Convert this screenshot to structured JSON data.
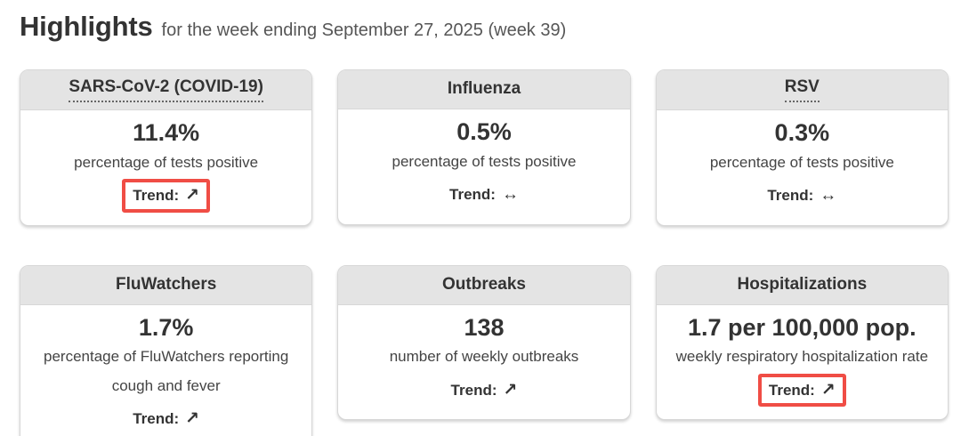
{
  "header": {
    "title": "Highlights",
    "subtitle": "for the week ending September 27, 2025 (week 39)"
  },
  "trend_label": "Trend:",
  "colors": {
    "highlight": "#f04d45",
    "card_header_bg": "#e4e4e4",
    "card_border": "#d7d7d7"
  },
  "cards": [
    {
      "title": "SARS-CoV-2 (COVID-19)",
      "underlined": true,
      "value": "11.4%",
      "description": "percentage of tests positive",
      "trend": {
        "arrow": "↗",
        "direction": "up",
        "highlighted": true
      }
    },
    {
      "title": "Influenza",
      "underlined": false,
      "value": "0.5%",
      "description": "percentage of tests positive",
      "trend": {
        "arrow": "↔",
        "direction": "steady",
        "highlighted": false
      }
    },
    {
      "title": "RSV",
      "underlined": true,
      "value": "0.3%",
      "description": "percentage of tests positive",
      "trend": {
        "arrow": "↔",
        "direction": "steady",
        "highlighted": false
      }
    },
    {
      "title": "FluWatchers",
      "underlined": false,
      "value": "1.7%",
      "description": "percentage of FluWatchers reporting cough and fever",
      "trend": {
        "arrow": "↗",
        "direction": "up",
        "highlighted": false
      }
    },
    {
      "title": "Outbreaks",
      "underlined": false,
      "value": "138",
      "description": "number of weekly outbreaks",
      "trend": {
        "arrow": "↗",
        "direction": "up",
        "highlighted": false
      }
    },
    {
      "title": "Hospitalizations",
      "underlined": false,
      "value": "1.7 per 100,000 pop.",
      "description": "weekly respiratory hospitalization rate",
      "trend": {
        "arrow": "↗",
        "direction": "up",
        "highlighted": true
      }
    }
  ]
}
